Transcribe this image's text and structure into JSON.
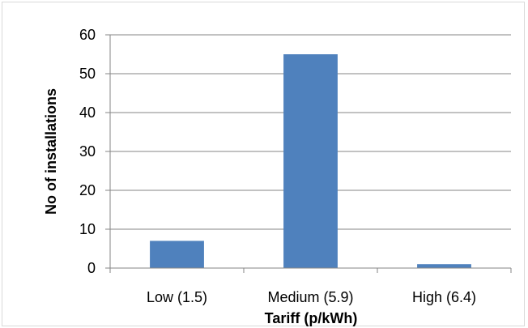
{
  "chart_data": {
    "type": "bar",
    "categories": [
      "Low (1.5)",
      "Medium (5.9)",
      "High (6.4)"
    ],
    "values": [
      7,
      55,
      1
    ],
    "xlabel": "Tariff (p/kWh)",
    "ylabel": "No of installations",
    "ylim": [
      0,
      60
    ],
    "yticks": [
      0,
      10,
      20,
      30,
      40,
      50,
      60
    ],
    "grid": true,
    "legend": false,
    "bar_color": "#4f81bd",
    "gridline_color": "#868686"
  }
}
